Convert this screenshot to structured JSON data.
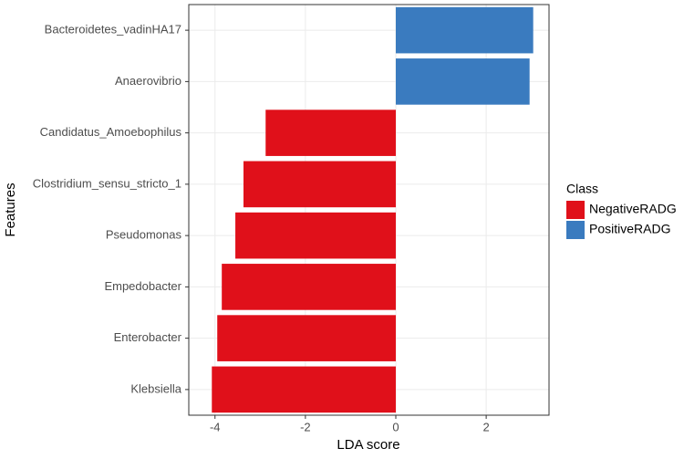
{
  "chart_data": {
    "type": "barh",
    "categories": [
      "Bacteroidetes_vadinHA17",
      "Anaerovibrio",
      "Candidatus_Amoebophilus",
      "Clostridium_sensu_stricto_1",
      "Pseudomonas",
      "Empedobacter",
      "Enterobacter",
      "Klebsiella"
    ],
    "series": [
      {
        "name": "NegativeRADG",
        "color": "#e0101a",
        "values": [
          null,
          null,
          -2.88,
          -3.37,
          -3.55,
          -3.85,
          -3.95,
          -4.07
        ]
      },
      {
        "name": "PositiveRADG",
        "color": "#3a7bbf",
        "values": [
          3.04,
          2.96,
          null,
          null,
          null,
          null,
          null,
          null
        ]
      }
    ],
    "x_label": "LDA score",
    "y_label": "Features",
    "legend_title": "Class",
    "xlim": [
      -4.58,
      3.39
    ],
    "xticks": [
      -4,
      -2,
      0,
      2
    ],
    "grid": true,
    "legend": "right"
  }
}
